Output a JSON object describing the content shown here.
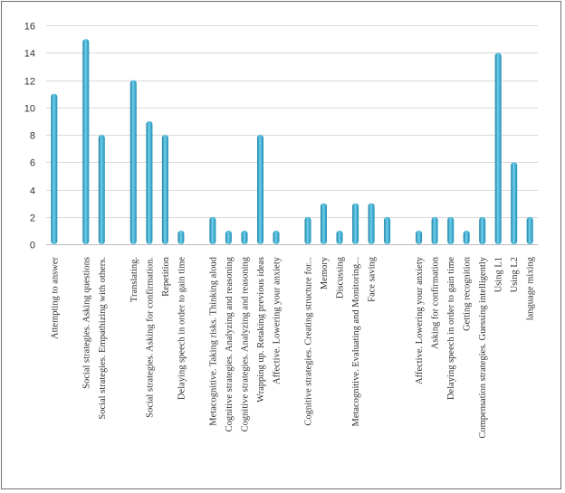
{
  "chart_data": {
    "type": "bar",
    "title": "",
    "xlabel": "",
    "ylabel": "",
    "ylim": [
      0,
      16
    ],
    "yticks": [
      0,
      2,
      4,
      6,
      8,
      10,
      12,
      14,
      16
    ],
    "grid": true,
    "legend": "none",
    "bar_color": "#2fa9cf",
    "bar_highlight": "#9fe0f2",
    "bar_shadow": "#1b7fa3",
    "categories": [
      "Attempting to answer",
      "",
      "Social strategies. Asking questions",
      "Social strategies. Empathizing with others.",
      "",
      "Translating.",
      "Social strategies. Asking for confirmation.",
      "Repetition",
      "Delaying speech in order to gain time",
      "",
      "Metacognitive. Taking risks. Thinking aloud",
      "Cognitive strategies. Analyzing and reasoning",
      "Cognitive strategies. Analyzing and reasoning",
      "Wrapping up. Retaking previous ideas",
      "Affective. Lowering your anxiety",
      "",
      "Cognitive strategies. Creating structure for...",
      "Memory",
      "Discussing",
      "Metacognitive. Evaluating and Monitoring...",
      "Face saving",
      "",
      "",
      "Affective. Lowering your anxiety",
      "Asking for confirmation",
      "Delaying speech in order to gain time",
      "Getting recognition",
      "Compensation strategies. Guessing intelligently",
      "Using L1",
      "Using L2",
      "language mixing"
    ],
    "values": [
      11,
      0,
      15,
      8,
      0,
      12,
      9,
      8,
      1,
      0,
      2,
      1,
      1,
      8,
      1,
      0,
      2,
      3,
      1,
      3,
      3,
      2,
      0,
      1,
      2,
      2,
      1,
      2,
      14,
      6,
      2
    ]
  }
}
